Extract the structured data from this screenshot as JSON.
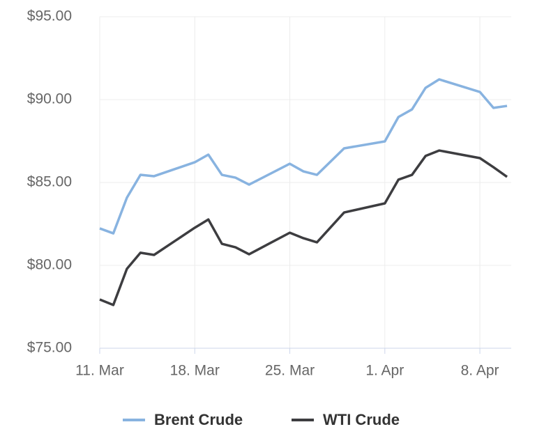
{
  "chart_data": {
    "type": "line",
    "x": [
      "03-11",
      "03-12",
      "03-13",
      "03-14",
      "03-15",
      "03-18",
      "03-19",
      "03-20",
      "03-21",
      "03-22",
      "03-25",
      "03-26",
      "03-27",
      "03-29",
      "04-01",
      "04-02",
      "04-03",
      "04-04",
      "04-05",
      "04-08",
      "04-09",
      "04-10"
    ],
    "series": [
      {
        "name": "Brent Crude",
        "color": "#88b3e0",
        "values": [
          82.23,
          81.93,
          84.08,
          85.46,
          85.38,
          86.22,
          86.68,
          85.46,
          85.29,
          84.87,
          86.13,
          85.67,
          85.46,
          87.06,
          87.48,
          88.95,
          89.41,
          90.71,
          91.22,
          90.46,
          89.5,
          89.62
        ]
      },
      {
        "name": "WTI Crude",
        "color": "#3d3d40",
        "values": [
          77.94,
          77.61,
          79.79,
          80.76,
          80.63,
          82.27,
          82.77,
          81.3,
          81.09,
          80.67,
          81.97,
          81.64,
          81.39,
          83.19,
          83.74,
          85.17,
          85.46,
          86.6,
          86.93,
          86.47,
          85.92,
          85.34
        ]
      }
    ],
    "xlim": [
      "03-11",
      "04-10"
    ],
    "xticks": [
      {
        "value": "03-11",
        "label": "11. Mar"
      },
      {
        "value": "03-18",
        "label": "18. Mar"
      },
      {
        "value": "03-25",
        "label": "25. Mar"
      },
      {
        "value": "04-01",
        "label": "1. Apr"
      },
      {
        "value": "04-08",
        "label": "8. Apr"
      }
    ],
    "ylim": [
      75,
      95
    ],
    "yticks": [
      {
        "value": 75,
        "label": "$75.00"
      },
      {
        "value": 80,
        "label": "$80.00"
      },
      {
        "value": 85,
        "label": "$85.00"
      },
      {
        "value": 90,
        "label": "$90.00"
      },
      {
        "value": 95,
        "label": "$95.00"
      }
    ],
    "grid": true,
    "legend": "bottom"
  }
}
